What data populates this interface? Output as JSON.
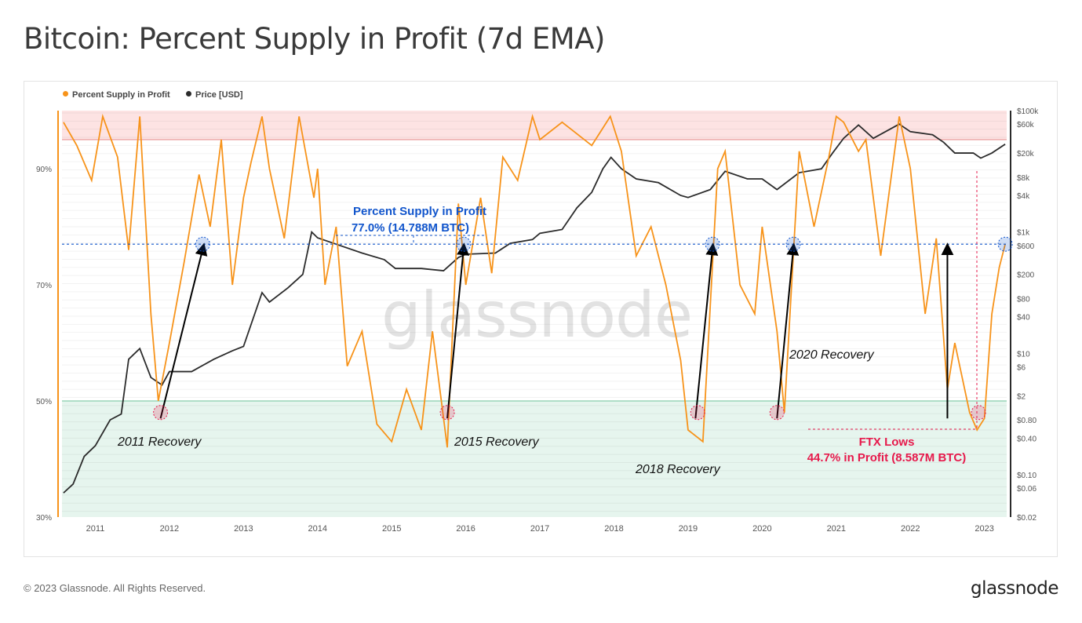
{
  "title": "Bitcoin: Percent Supply in Profit (7d EMA)",
  "footer": "© 2023 Glassnode. All Rights Reserved.",
  "brand": "glassnode",
  "watermark": "glassnode",
  "colors": {
    "profit": "#f7931a",
    "price": "#2b2b2b",
    "upper_zone": "#fde3e3",
    "lower_zone": "#e6f5ee",
    "annotation_blue": "#1155cc",
    "annotation_red": "#e6194b"
  },
  "chart_data": {
    "type": "line",
    "legend": [
      {
        "name": "Percent Supply in Profit",
        "color": "#f7931a"
      },
      {
        "name": "Price [USD]",
        "color": "#2b2b2b"
      }
    ],
    "x_ticks": [
      "2011",
      "2012",
      "2013",
      "2014",
      "2015",
      "2016",
      "2017",
      "2018",
      "2019",
      "2020",
      "2021",
      "2022",
      "2023"
    ],
    "xlim": [
      2010.55,
      2023.3
    ],
    "left_axis": {
      "ticks": [
        "90%",
        "70%",
        "50%",
        "30%"
      ],
      "tick_values": [
        90,
        70,
        50,
        30
      ],
      "ylim": [
        30,
        100
      ]
    },
    "right_axis": {
      "scale": "log",
      "ticks": [
        "$100k",
        "$60k",
        "$20k",
        "$8k",
        "$4k",
        "$1k",
        "$600",
        "$200",
        "$80",
        "$40",
        "$10",
        "$6",
        "$2",
        "$0.80",
        "$0.40",
        "$0.10",
        "$0.06",
        "$0.02"
      ],
      "tick_values": [
        100000,
        60000,
        20000,
        8000,
        4000,
        1000,
        600,
        200,
        80,
        40,
        10,
        6,
        2,
        0.8,
        0.4,
        0.1,
        0.06,
        0.02
      ],
      "ylim": [
        0.02,
        100000
      ]
    },
    "zones": [
      {
        "name": "upper",
        "from": 95,
        "to": 100
      },
      {
        "name": "lower",
        "from": 30,
        "to": 50
      }
    ],
    "series": [
      {
        "name": "Percent Supply in Profit",
        "x": [
          2010.57,
          2010.75,
          2010.95,
          2011.1,
          2011.3,
          2011.45,
          2011.6,
          2011.75,
          2011.85,
          2012.0,
          2012.2,
          2012.4,
          2012.55,
          2012.7,
          2012.85,
          2013.0,
          2013.1,
          2013.25,
          2013.35,
          2013.55,
          2013.75,
          2013.95,
          2014.0,
          2014.1,
          2014.25,
          2014.4,
          2014.6,
          2014.8,
          2015.0,
          2015.2,
          2015.4,
          2015.55,
          2015.75,
          2015.9,
          2016.0,
          2016.2,
          2016.35,
          2016.5,
          2016.7,
          2016.9,
          2017.0,
          2017.3,
          2017.5,
          2017.7,
          2017.95,
          2018.1,
          2018.3,
          2018.5,
          2018.7,
          2018.9,
          2019.0,
          2019.2,
          2019.4,
          2019.5,
          2019.7,
          2019.9,
          2020.0,
          2020.2,
          2020.3,
          2020.5,
          2020.7,
          2020.9,
          2021.0,
          2021.1,
          2021.3,
          2021.4,
          2021.6,
          2021.85,
          2022.0,
          2022.2,
          2022.35,
          2022.5,
          2022.6,
          2022.8,
          2022.9,
          2023.0,
          2023.1,
          2023.2,
          2023.28
        ],
        "y": [
          98,
          94,
          88,
          99,
          92,
          76,
          99,
          65,
          50,
          60,
          74,
          89,
          80,
          95,
          70,
          85,
          91,
          99,
          90,
          78,
          99,
          85,
          90,
          70,
          80,
          56,
          62,
          46,
          43,
          52,
          45,
          62,
          42,
          84,
          70,
          85,
          72,
          92,
          88,
          99,
          95,
          98,
          96,
          94,
          99,
          93,
          75,
          80,
          70,
          57,
          45,
          43,
          90,
          93,
          70,
          65,
          80,
          62,
          48,
          93,
          80,
          92,
          99,
          98,
          93,
          95,
          75,
          99,
          90,
          65,
          78,
          52,
          60,
          48,
          45,
          47,
          65,
          73,
          77
        ]
      },
      {
        "name": "Price [USD]",
        "x": [
          2010.57,
          2010.7,
          2010.85,
          2011.0,
          2011.2,
          2011.35,
          2011.45,
          2011.6,
          2011.75,
          2011.9,
          2012.0,
          2012.3,
          2012.6,
          2012.85,
          2013.0,
          2013.25,
          2013.35,
          2013.6,
          2013.8,
          2013.92,
          2014.0,
          2014.3,
          2014.6,
          2014.9,
          2015.05,
          2015.4,
          2015.7,
          2015.9,
          2016.0,
          2016.4,
          2016.6,
          2016.9,
          2017.0,
          2017.3,
          2017.5,
          2017.7,
          2017.85,
          2017.96,
          2018.1,
          2018.3,
          2018.6,
          2018.9,
          2019.0,
          2019.3,
          2019.5,
          2019.8,
          2020.0,
          2020.2,
          2020.5,
          2020.8,
          2020.95,
          2021.1,
          2021.3,
          2021.5,
          2021.85,
          2022.0,
          2022.3,
          2022.45,
          2022.6,
          2022.85,
          2022.95,
          2023.1,
          2023.28
        ],
        "y": [
          0.05,
          0.07,
          0.2,
          0.3,
          0.8,
          1.0,
          8,
          12,
          4,
          3,
          5,
          5,
          8,
          11,
          13,
          100,
          70,
          120,
          200,
          1000,
          800,
          600,
          450,
          350,
          250,
          250,
          230,
          380,
          430,
          450,
          650,
          750,
          950,
          1100,
          2500,
          4500,
          11000,
          17000,
          11000,
          7500,
          6500,
          4000,
          3700,
          5000,
          10000,
          7500,
          7500,
          5000,
          9500,
          11000,
          20000,
          35000,
          58000,
          35000,
          60000,
          45000,
          40000,
          30000,
          20000,
          20000,
          16500,
          20000,
          28000
        ]
      }
    ],
    "reference_line": {
      "value": 77.0
    },
    "annotations": {
      "supply_title": "Percent Supply in Profit",
      "supply_value": "77.0% (14.788M BTC)",
      "r2011": "2011 Recovery",
      "r2015": "2015 Recovery",
      "r2018": "2018 Recovery",
      "r2020": "2020 Recovery",
      "ftx_title": "FTX Lows",
      "ftx_value": "44.7% in Profit (8.587M BTC)"
    }
  }
}
